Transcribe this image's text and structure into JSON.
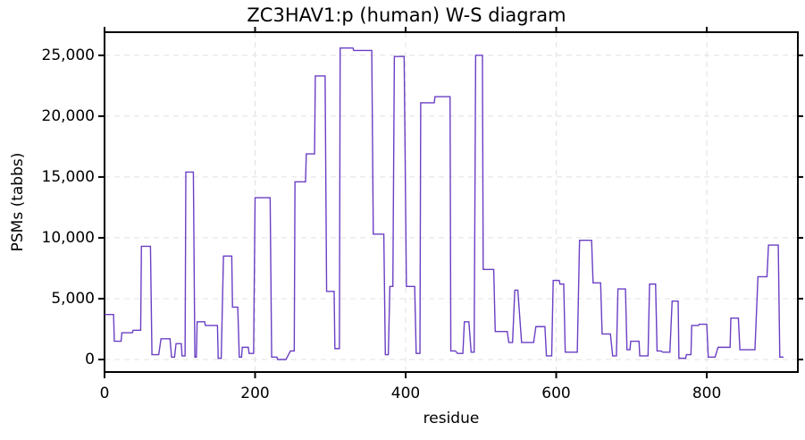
{
  "chart_data": {
    "type": "line",
    "title": "ZC3HAV1:p (human) W-S diagram",
    "x_label": "residue",
    "y_label": "PSMs (tabbs)",
    "x": [
      0,
      12,
      13,
      22,
      23,
      37,
      38,
      48,
      49,
      61,
      63,
      72,
      75,
      87,
      89,
      93,
      95,
      102,
      103,
      107,
      108,
      118,
      120,
      122,
      123,
      133,
      134,
      150,
      151,
      155,
      158,
      169,
      170,
      177,
      179,
      182,
      183,
      191,
      192,
      198,
      200,
      220,
      222,
      229,
      230,
      241,
      247,
      252,
      253,
      267,
      268,
      279,
      280,
      293,
      295,
      305,
      306,
      312,
      313,
      330,
      331,
      355,
      357,
      371,
      373,
      377,
      379,
      383,
      385,
      398,
      401,
      412,
      414,
      419,
      420,
      438,
      439,
      459,
      460,
      466,
      469,
      476,
      478,
      484,
      487,
      491,
      493,
      502,
      503,
      517,
      519,
      535,
      537,
      542,
      545,
      549,
      554,
      570,
      573,
      585,
      587,
      594,
      596,
      604,
      605,
      610,
      612,
      628,
      631,
      647,
      649,
      659,
      661,
      672,
      675,
      680,
      682,
      692,
      694,
      698,
      699,
      710,
      711,
      722,
      724,
      732,
      734,
      739,
      742,
      751,
      754,
      762,
      763,
      772,
      773,
      779,
      780,
      789,
      790,
      800,
      802,
      811,
      815,
      831,
      832,
      842,
      844,
      864,
      868,
      880,
      882,
      895,
      897,
      902
    ],
    "series": [
      {
        "name": "PSMs",
        "color": "#6a3fc4",
        "values": [
          3700,
          3700,
          1500,
          1500,
          2200,
          2200,
          2400,
          2400,
          9300,
          9300,
          400,
          400,
          1700,
          1700,
          200,
          200,
          1300,
          1300,
          300,
          300,
          15400,
          15400,
          200,
          200,
          3100,
          3100,
          2800,
          2800,
          100,
          100,
          8500,
          8500,
          4300,
          4300,
          200,
          200,
          1000,
          1000,
          500,
          500,
          13300,
          13300,
          200,
          200,
          0,
          0,
          700,
          700,
          14600,
          14600,
          16900,
          16900,
          23300,
          23300,
          5600,
          5600,
          900,
          900,
          25600,
          25600,
          25400,
          25400,
          10300,
          10300,
          400,
          400,
          6000,
          6000,
          24900,
          24900,
          6000,
          6000,
          500,
          500,
          21100,
          21100,
          21600,
          21600,
          700,
          700,
          500,
          500,
          3100,
          3100,
          600,
          600,
          25000,
          25000,
          7400,
          7400,
          2300,
          2300,
          1400,
          1400,
          5700,
          5700,
          1400,
          1400,
          2700,
          2700,
          300,
          300,
          6500,
          6500,
          6200,
          6200,
          600,
          600,
          9800,
          9800,
          6300,
          6300,
          2100,
          2100,
          300,
          300,
          5800,
          5800,
          800,
          800,
          1500,
          1500,
          300,
          300,
          6200,
          6200,
          700,
          700,
          600,
          600,
          4800,
          4800,
          100,
          100,
          400,
          400,
          2800,
          2800,
          2900,
          2900,
          200,
          200,
          1000,
          1000,
          3400,
          3400,
          800,
          800,
          6800,
          6800,
          9400,
          9400,
          200,
          200
        ]
      }
    ],
    "xlim": [
      0,
      921
    ],
    "ylim": [
      -1030,
      26900
    ],
    "xticks": [
      0,
      200,
      400,
      600,
      800
    ],
    "yticks": [
      0,
      {
        "value": 5000,
        "label": "5,000"
      },
      {
        "value": 10000,
        "label": "10,000"
      },
      {
        "value": 15000,
        "label": "15,000"
      },
      {
        "value": 20000,
        "label": "20,000"
      },
      {
        "value": 25000,
        "label": "25,000"
      }
    ],
    "grid": true
  }
}
